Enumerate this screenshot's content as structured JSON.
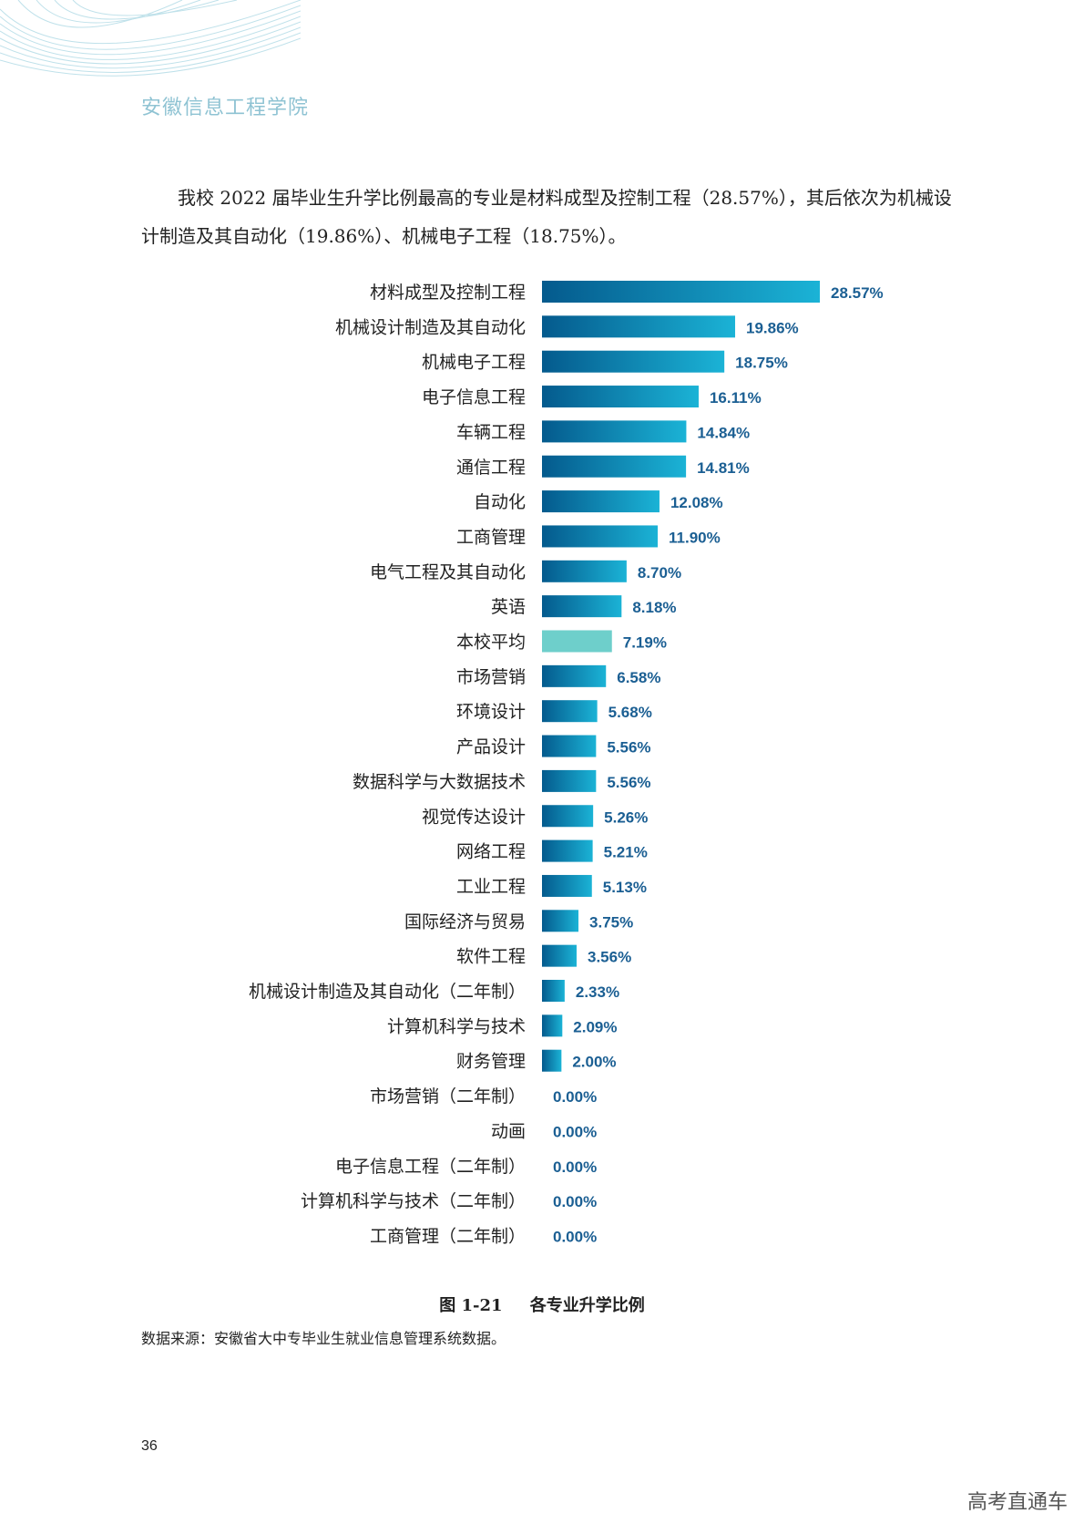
{
  "header": {
    "school_name": "安徽信息工程学院"
  },
  "intro": {
    "text": "我校 2022 届毕业生升学比例最高的专业是材料成型及控制工程（28.57%），其后依次为机械设计制造及其自动化（19.86%）、机械电子工程（18.75%）。"
  },
  "colors": {
    "bar_dark": "#045a8d",
    "bar_light": "#1bb3d6",
    "average_bar": "#6ecfcb",
    "label_value": "#1b5f93"
  },
  "chart_data": {
    "type": "bar",
    "orientation": "horizontal",
    "categories": [
      "材料成型及控制工程",
      "机械设计制造及其自动化",
      "机械电子工程",
      "电子信息工程",
      "车辆工程",
      "通信工程",
      "自动化",
      "工商管理",
      "电气工程及其自动化",
      "英语",
      "本校平均",
      "市场营销",
      "环境设计",
      "产品设计",
      "数据科学与大数据技术",
      "视觉传达设计",
      "网络工程",
      "工业工程",
      "国际经济与贸易",
      "软件工程",
      "机械设计制造及其自动化（二年制）",
      "计算机科学与技术",
      "财务管理",
      "市场营销（二年制）",
      "动画",
      "电子信息工程（二年制）",
      "计算机科学与技术（二年制）",
      "工商管理（二年制）"
    ],
    "values": [
      28.57,
      19.86,
      18.75,
      16.11,
      14.84,
      14.81,
      12.08,
      11.9,
      8.7,
      8.18,
      7.19,
      6.58,
      5.68,
      5.56,
      5.56,
      5.26,
      5.21,
      5.13,
      3.75,
      3.56,
      2.33,
      2.09,
      2.0,
      0.0,
      0.0,
      0.0,
      0.0,
      0.0
    ],
    "value_labels": [
      "28.57%",
      "19.86%",
      "18.75%",
      "16.11%",
      "14.84%",
      "14.81%",
      "12.08%",
      "11.90%",
      "8.70%",
      "8.18%",
      "7.19%",
      "6.58%",
      "5.68%",
      "5.56%",
      "5.56%",
      "5.26%",
      "5.21%",
      "5.13%",
      "3.75%",
      "3.56%",
      "2.33%",
      "2.09%",
      "2.00%",
      "0.00%",
      "0.00%",
      "0.00%",
      "0.00%",
      "0.00%"
    ],
    "highlight_category": "本校平均",
    "xlim": [
      0,
      30
    ],
    "grid": false,
    "legend": false
  },
  "caption": {
    "figure_no": "图 1-21",
    "title": "各专业升学比例"
  },
  "source": "数据来源：安徽省大中专毕业生就业信息管理系统数据。",
  "page_number": "36",
  "watermark": "高考直通车"
}
